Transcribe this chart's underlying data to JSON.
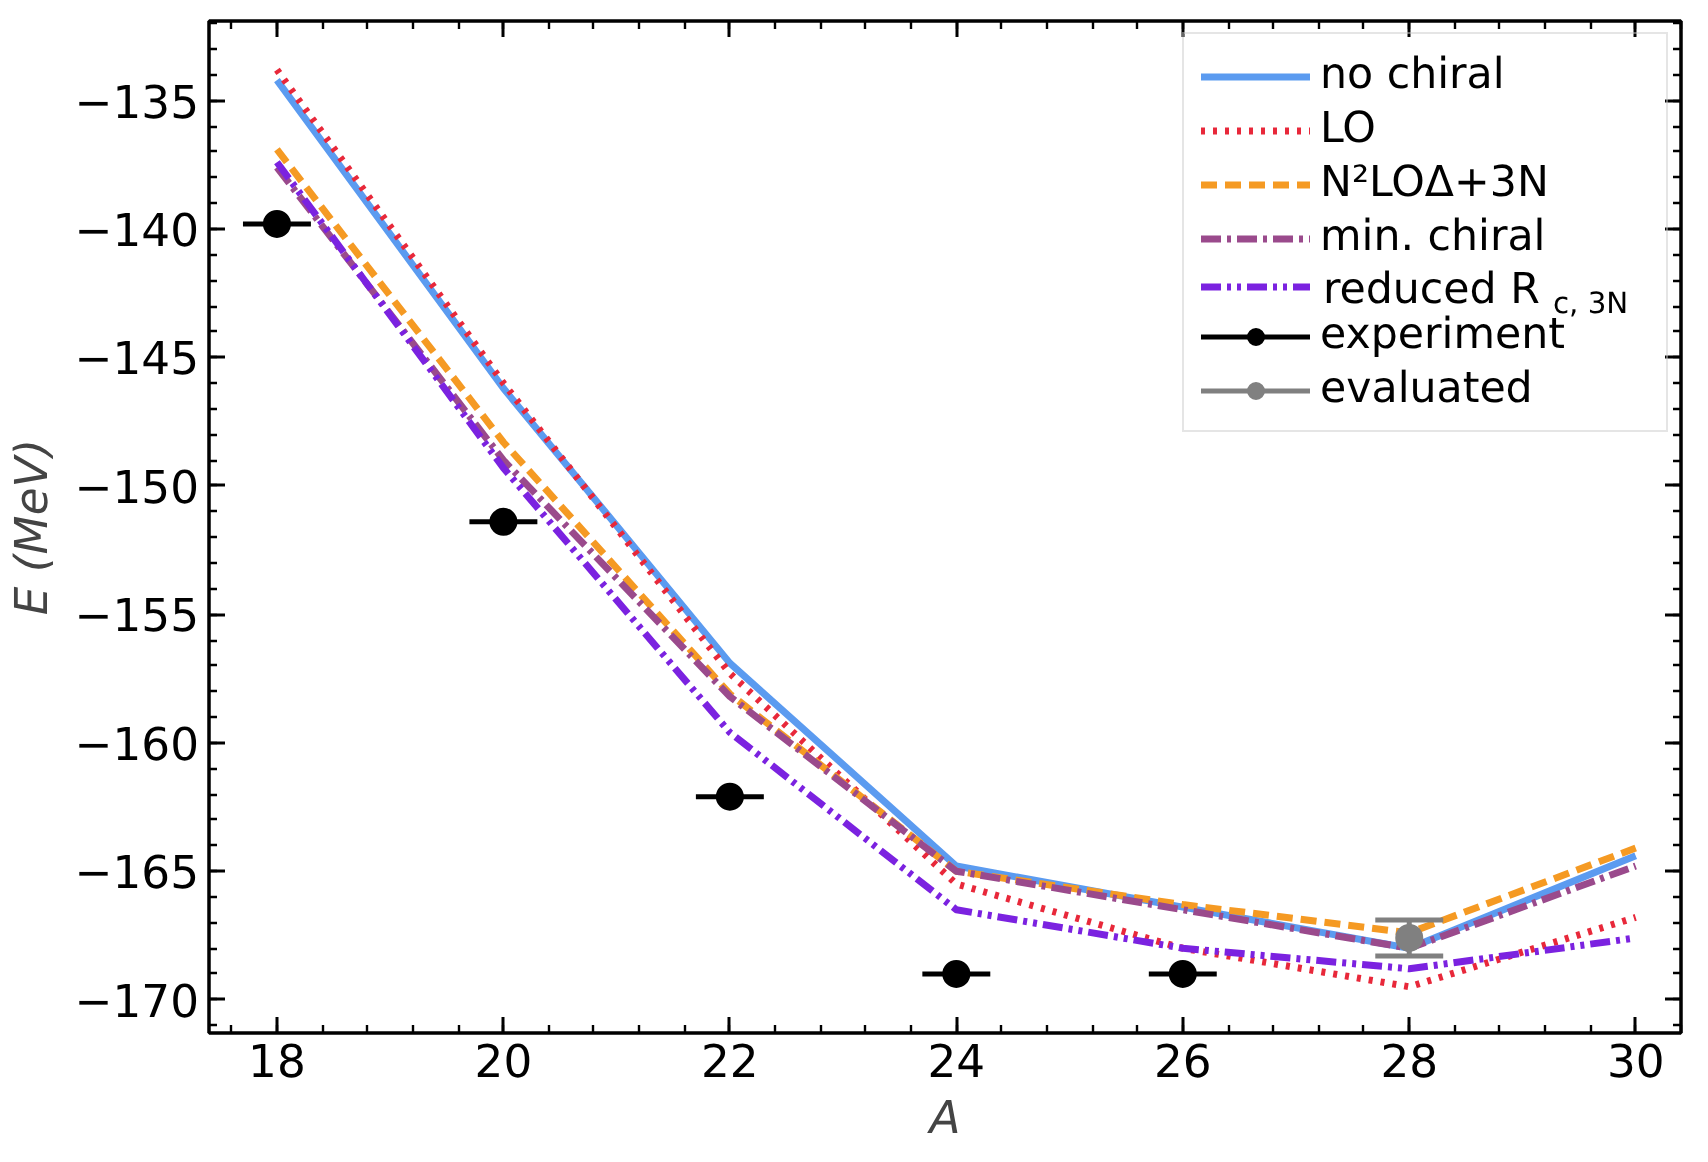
{
  "chart_data": {
    "type": "line",
    "xlabel": "A",
    "ylabel": "E (MeV)",
    "x": [
      18,
      20,
      22,
      24,
      26,
      28,
      30
    ],
    "xlim": [
      17.4,
      30.4
    ],
    "ylim": [
      -171.3,
      -131.9
    ],
    "xticks": [
      18,
      20,
      22,
      24,
      26,
      28,
      30
    ],
    "yticks": [
      -170,
      -165,
      -160,
      -155,
      -150,
      -145,
      -140,
      -135
    ],
    "grid": false,
    "legend": "top right",
    "series": [
      {
        "name": "no chiral",
        "color": "#5b9bf0",
        "line_style": "solid",
        "values": [
          -134.2,
          -146.2,
          -156.9,
          -164.8,
          -166.4,
          -168.0,
          -164.4
        ]
      },
      {
        "name": "LO",
        "color": "#e8283a",
        "line_style": "dotted",
        "values": [
          -133.8,
          -146.0,
          -157.3,
          -165.5,
          -168.0,
          -169.5,
          -166.8
        ]
      },
      {
        "name": "N²LOΔ+3N",
        "color": "#f59a23",
        "line_style": "dashed",
        "values": [
          -136.9,
          -148.3,
          -158.1,
          -165.0,
          -166.3,
          -167.4,
          -164.1
        ]
      },
      {
        "name": "min. chiral",
        "color": "#9a4a8c",
        "line_style": "dashdot",
        "values": [
          -137.6,
          -149.0,
          -158.2,
          -165.0,
          -166.5,
          -168.0,
          -164.8
        ]
      },
      {
        "name": "reduced R$_{c, 3N}$",
        "color": "#7b22e0",
        "line_style": "dashdotdot",
        "values": [
          -137.4,
          -149.3,
          -159.6,
          -166.5,
          -168.0,
          -168.8,
          -167.6
        ]
      },
      {
        "name": "experiment",
        "type": "scatter",
        "marker": "circle",
        "color": "#000000",
        "x": [
          18,
          20,
          22,
          24,
          26
        ],
        "values": [
          -139.8,
          -151.4,
          -162.1,
          -169.0,
          -169.0
        ],
        "xerrors": [
          0.3,
          0.3,
          0.3,
          0.3,
          0.3
        ]
      },
      {
        "name": "evaluated",
        "type": "scatter",
        "marker": "circle",
        "color": "#808080",
        "x": [
          28
        ],
        "values": [
          -167.6
        ],
        "errors": [
          0.7
        ]
      }
    ]
  }
}
